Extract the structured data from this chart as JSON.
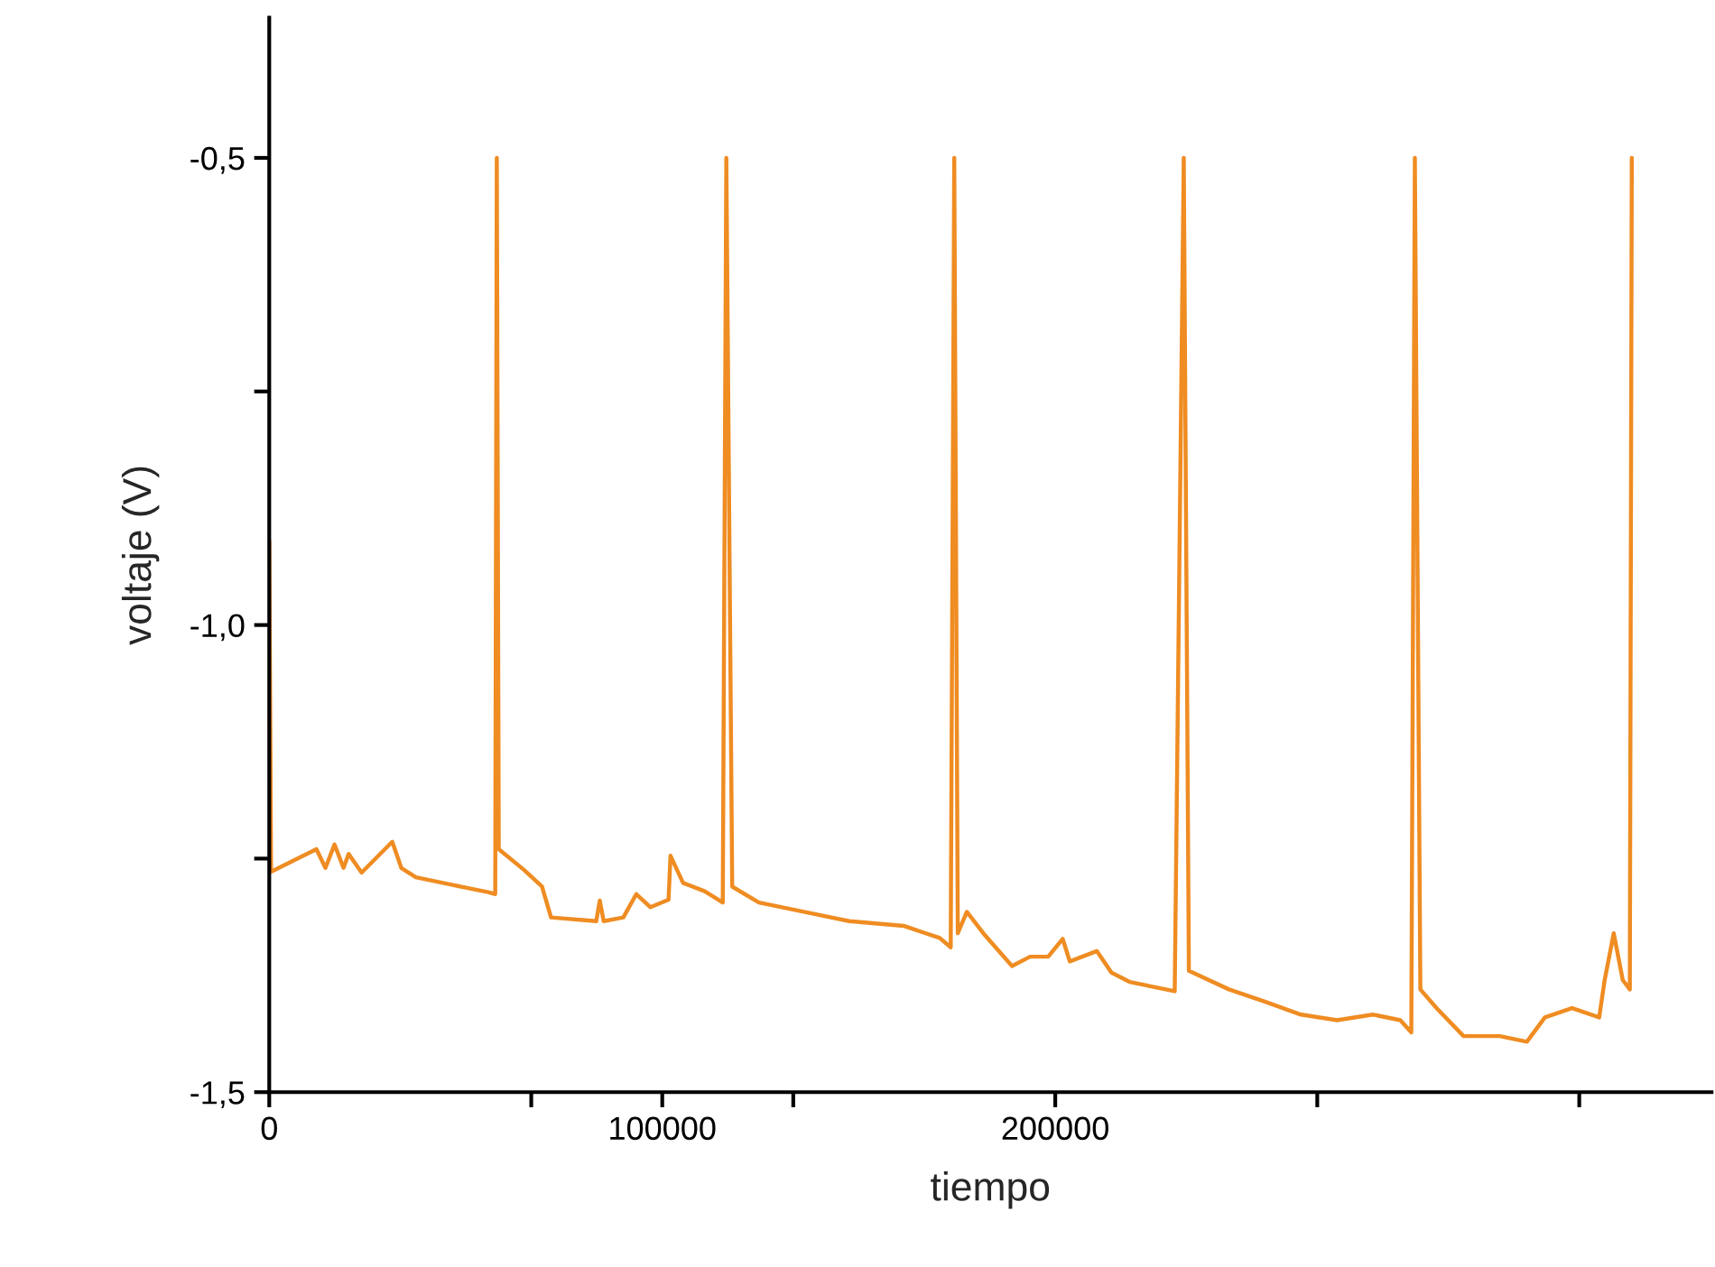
{
  "chart_data": {
    "type": "line",
    "xlabel": "tiempo",
    "ylabel": "voltaje (V)",
    "xlim": [
      0,
      367000
    ],
    "ylim": [
      -1.5,
      -0.35
    ],
    "xticks": [
      0,
      {
        "value": 66667,
        "label": null
      },
      100000,
      {
        "value": 133333,
        "label": null
      },
      200000,
      {
        "value": 266667,
        "label": null
      },
      {
        "value": 333333,
        "label": null
      }
    ],
    "yticks": [
      {
        "value": -1.5,
        "label": "-1,5"
      },
      {
        "value": -1.25,
        "label": null
      },
      {
        "value": -1.0,
        "label": "-1,0"
      },
      {
        "value": -0.75,
        "label": null
      },
      {
        "value": -0.5,
        "label": "-0,5"
      }
    ],
    "grid": false,
    "marker": "none",
    "line_style": "solid",
    "series": [
      {
        "color": "#ef8c22",
        "x": [
          0,
          460,
          12000,
          14300,
          16600,
          18900,
          20200,
          23500,
          31300,
          33600,
          37300,
          46400,
          55700,
          57500,
          57900,
          58400,
          64800,
          69400,
          71700,
          83200,
          84100,
          85100,
          90100,
          93400,
          97000,
          101600,
          102100,
          105300,
          110800,
          115400,
          116300,
          117800,
          124600,
          133800,
          147600,
          161400,
          170600,
          173400,
          174300,
          175200,
          177500,
          182100,
          189000,
          193600,
          198200,
          201900,
          203700,
          210600,
          214300,
          218900,
          230400,
          232700,
          234000,
          244200,
          253300,
          262500,
          271700,
          280900,
          287800,
          290600,
          291500,
          292900,
          297000,
          303900,
          313100,
          320000,
          324600,
          331500,
          338400,
          339800,
          342100,
          344400,
          346200,
          346700
        ],
        "values": [
          -0.91,
          -1.264,
          -1.24,
          -1.26,
          -1.235,
          -1.26,
          -1.245,
          -1.265,
          -1.232,
          -1.26,
          -1.27,
          -1.278,
          -1.286,
          -1.288,
          -0.5,
          -1.24,
          -1.262,
          -1.28,
          -1.313,
          -1.317,
          -1.295,
          -1.317,
          -1.313,
          -1.288,
          -1.302,
          -1.294,
          -1.247,
          -1.276,
          -1.285,
          -1.297,
          -0.5,
          -1.28,
          -1.297,
          -1.305,
          -1.317,
          -1.322,
          -1.335,
          -1.345,
          -0.5,
          -1.33,
          -1.307,
          -1.332,
          -1.365,
          -1.355,
          -1.355,
          -1.336,
          -1.36,
          -1.349,
          -1.372,
          -1.382,
          -1.392,
          -0.5,
          -1.37,
          -1.39,
          -1.403,
          -1.417,
          -1.423,
          -1.417,
          -1.423,
          -1.436,
          -0.5,
          -1.39,
          -1.41,
          -1.44,
          -1.44,
          -1.446,
          -1.42,
          -1.41,
          -1.42,
          -1.38,
          -1.33,
          -1.38,
          -1.39,
          -0.5
        ]
      }
    ]
  }
}
